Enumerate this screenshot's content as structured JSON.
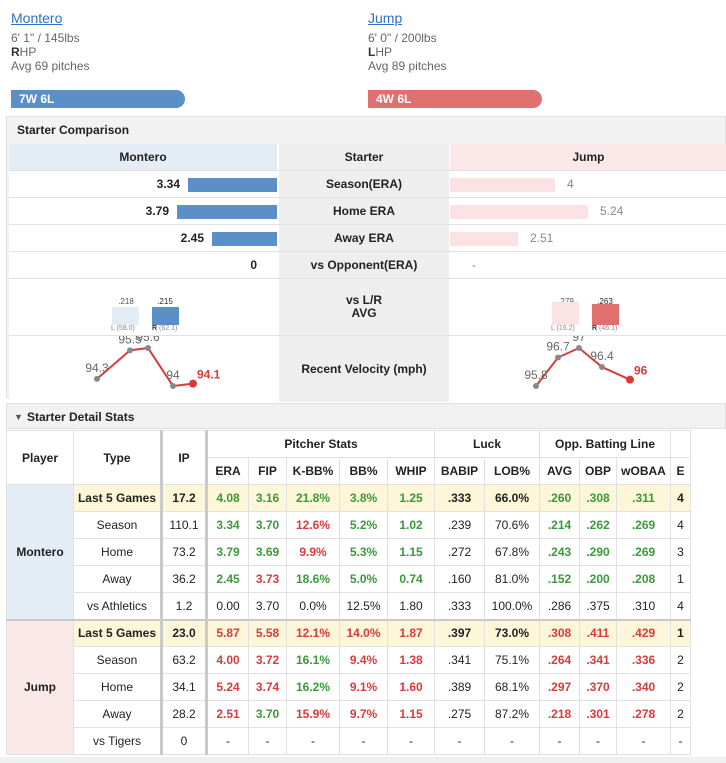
{
  "left_pitcher": {
    "name": "Montero",
    "height_weight": "6' 1\" / 145lbs",
    "hand_letter": "R",
    "hand_rest": "HP",
    "avg_pitches": "Avg 69 pitches",
    "record": "7W 6L"
  },
  "right_pitcher": {
    "name": "Jump",
    "height_weight": "6' 0\" / 200lbs",
    "hand_letter": "L",
    "hand_rest": "HP",
    "avg_pitches": "Avg 89 pitches",
    "record": "4W 6L"
  },
  "comparison": {
    "title": "Starter Comparison",
    "header": {
      "left": "Montero",
      "mid": "Starter",
      "right": "Jump"
    },
    "rows": [
      {
        "label": "Season(ERA)",
        "left": "3.34",
        "right": "4",
        "left_fill": 0.33,
        "right_fill": 0.39
      },
      {
        "label": "Home ERA",
        "left": "3.79",
        "right": "5.24",
        "left_fill": 0.37,
        "right_fill": 0.51
      },
      {
        "label": "Away ERA",
        "left": "2.45",
        "right": "2.51",
        "left_fill": 0.24,
        "right_fill": 0.25
      },
      {
        "label": "vs Opponent(ERA)",
        "left": "0",
        "right": "-",
        "left_fill": 0,
        "right_fill": 0
      }
    ],
    "lr": {
      "label_line1": "vs L/R",
      "label_line2": "AVG",
      "left": {
        "l_val": ".218",
        "r_val": ".215",
        "l_label": "L",
        "l_ip": "(58.0)",
        "r_label": "R",
        "r_ip": "(62.1)"
      },
      "right": {
        "l_val": ".279",
        "r_val": ".263",
        "l_label": "L",
        "l_ip": "(16.2)",
        "r_label": "R",
        "r_ip": "(46.1)"
      }
    },
    "velocity": {
      "label": "Recent Velocity (mph)",
      "left": [
        "94.3",
        "95.5",
        "95.6",
        "94",
        "94.1"
      ],
      "right": [
        "95.8",
        "96.7",
        "97",
        "96.4",
        "96"
      ]
    }
  },
  "detail": {
    "title": "Starter Detail Stats",
    "toggle_icon": "▼",
    "headers": {
      "player": "Player",
      "type": "Type",
      "ip": "IP",
      "group_pitcher": "Pitcher Stats",
      "group_luck": "Luck",
      "group_opp": "Opp. Batting Line",
      "cols": [
        "ERA",
        "FIP",
        "K-BB%",
        "BB%",
        "WHIP",
        "BABIP",
        "LOB%",
        "AVG",
        "OBP",
        "wOBAA",
        "E"
      ]
    },
    "groups": [
      {
        "player": "Montero",
        "rows": [
          [
            "Last 5 Games",
            "17.2",
            "4.08",
            "3.16",
            "21.8%",
            "3.8%",
            "1.25",
            ".333",
            "66.0%",
            ".260",
            ".308",
            ".311",
            "4"
          ],
          [
            "Season",
            "110.1",
            "3.34",
            "3.70",
            "12.6%",
            "5.2%",
            "1.02",
            ".239",
            "70.6%",
            ".214",
            ".262",
            ".269",
            "4"
          ],
          [
            "Home",
            "73.2",
            "3.79",
            "3.69",
            "9.9%",
            "5.3%",
            "1.15",
            ".272",
            "67.8%",
            ".243",
            ".290",
            ".269",
            "3"
          ],
          [
            "Away",
            "36.2",
            "2.45",
            "3.73",
            "18.6%",
            "5.0%",
            "0.74",
            ".160",
            "81.0%",
            ".152",
            ".200",
            ".208",
            "1"
          ],
          [
            "vs Athletics",
            "1.2",
            "0.00",
            "3.70",
            "0.0%",
            "12.5%",
            "1.80",
            ".333",
            "100.0%",
            ".286",
            ".375",
            ".310",
            "4"
          ]
        ],
        "colors": [
          [
            "",
            "",
            "g",
            "g",
            "g",
            "g",
            "g",
            "",
            "",
            "g",
            "g",
            "g",
            ""
          ],
          [
            "",
            "",
            "g",
            "g",
            "r",
            "g",
            "g",
            "",
            "",
            "g",
            "g",
            "g",
            ""
          ],
          [
            "",
            "",
            "g",
            "g",
            "r",
            "g",
            "g",
            "",
            "",
            "g",
            "g",
            "g",
            ""
          ],
          [
            "",
            "",
            "g",
            "r",
            "g",
            "g",
            "g",
            "",
            "",
            "g",
            "g",
            "g",
            ""
          ],
          [
            "",
            "",
            "",
            "",
            "",
            "",
            "",
            "",
            "",
            "",
            "",
            "",
            ""
          ]
        ]
      },
      {
        "player": "Jump",
        "rows": [
          [
            "Last 5 Games",
            "23.0",
            "5.87",
            "5.58",
            "12.1%",
            "14.0%",
            "1.87",
            ".397",
            "73.0%",
            ".308",
            ".411",
            ".429",
            "1"
          ],
          [
            "Season",
            "63.2",
            "4.00",
            "3.72",
            "16.1%",
            "9.4%",
            "1.38",
            ".341",
            "75.1%",
            ".264",
            ".341",
            ".336",
            "2"
          ],
          [
            "Home",
            "34.1",
            "5.24",
            "3.74",
            "16.2%",
            "9.1%",
            "1.60",
            ".389",
            "68.1%",
            ".297",
            ".370",
            ".340",
            "2"
          ],
          [
            "Away",
            "28.2",
            "2.51",
            "3.70",
            "15.9%",
            "9.7%",
            "1.15",
            ".275",
            "87.2%",
            ".218",
            ".301",
            ".278",
            "2"
          ],
          [
            "vs Tigers",
            "0",
            "-",
            "-",
            "-",
            "-",
            "-",
            "-",
            "-",
            "-",
            "-",
            "-",
            "-"
          ]
        ],
        "colors": [
          [
            "",
            "",
            "r",
            "r",
            "r",
            "r",
            "r",
            "",
            "",
            "r",
            "r",
            "r",
            ""
          ],
          [
            "",
            "",
            "r",
            "r",
            "g",
            "r",
            "r",
            "",
            "",
            "r",
            "r",
            "r",
            ""
          ],
          [
            "",
            "",
            "r",
            "r",
            "g",
            "r",
            "r",
            "",
            "",
            "r",
            "r",
            "r",
            ""
          ],
          [
            "",
            "",
            "r",
            "g",
            "r",
            "r",
            "r",
            "",
            "",
            "r",
            "r",
            "r",
            ""
          ],
          [
            "",
            "",
            "",
            "",
            "",
            "",
            "",
            "",
            "",
            "",
            "",
            "",
            ""
          ]
        ]
      }
    ]
  },
  "colors": {
    "left": "#5b8fc7",
    "right": "#e07070",
    "good": "#3a9a3a",
    "bad": "#d93b3b",
    "highlight": "#fdf6d8"
  }
}
